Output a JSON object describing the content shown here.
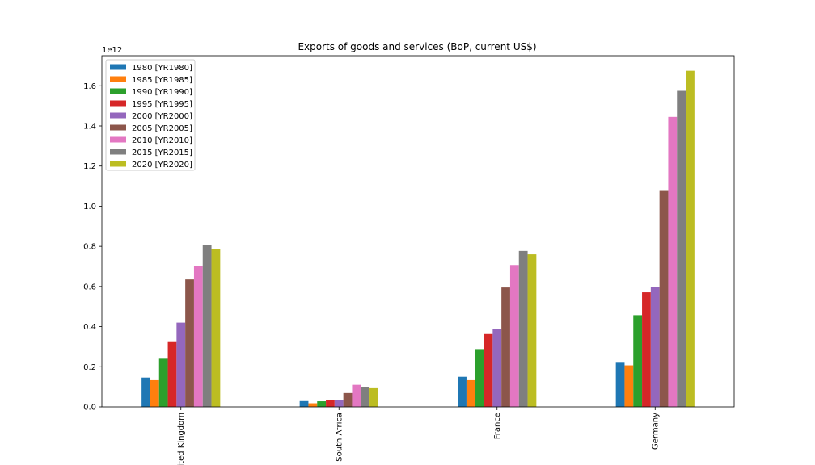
{
  "chart_data": {
    "type": "bar",
    "title": "Exports of goods and services (BoP, current US$)",
    "xlabel": "",
    "ylabel": "",
    "y_offset_label": "1e12",
    "ylim": [
      0,
      1750000000000.0
    ],
    "yticks": [
      0,
      200000000000.0,
      400000000000.0,
      600000000000.0,
      800000000000.0,
      1000000000000.0,
      1200000000000.0,
      1400000000000.0,
      1600000000000.0
    ],
    "ytick_labels": [
      "0.0",
      "0.2",
      "0.4",
      "0.6",
      "0.8",
      "1.0",
      "1.2",
      "1.4",
      "1.6"
    ],
    "categories": [
      "United Kingdom",
      "South Africa",
      "France",
      "Germany"
    ],
    "legend_position": "upper-left",
    "grid": false,
    "series": [
      {
        "name": "1980 [YR1980]",
        "color": "#1f77b4",
        "values": [
          146000000000.0,
          29000000000.0,
          150000000000.0,
          220000000000.0
        ]
      },
      {
        "name": "1985 [YR1985]",
        "color": "#ff7f0e",
        "values": [
          133000000000.0,
          18000000000.0,
          133000000000.0,
          207000000000.0
        ]
      },
      {
        "name": "1990 [YR1990]",
        "color": "#2ca02c",
        "values": [
          240000000000.0,
          28000000000.0,
          288000000000.0,
          457000000000.0
        ]
      },
      {
        "name": "1995 [YR1995]",
        "color": "#d62728",
        "values": [
          323000000000.0,
          36000000000.0,
          363000000000.0,
          571000000000.0
        ]
      },
      {
        "name": "2000 [YR2000]",
        "color": "#9467bd",
        "values": [
          420000000000.0,
          36000000000.0,
          388000000000.0,
          597000000000.0
        ]
      },
      {
        "name": "2005 [YR2005]",
        "color": "#8c564b",
        "values": [
          635000000000.0,
          69000000000.0,
          595000000000.0,
          1080000000000.0
        ]
      },
      {
        "name": "2010 [YR2010]",
        "color": "#e377c2",
        "values": [
          702000000000.0,
          110000000000.0,
          707000000000.0,
          1445000000000.0
        ]
      },
      {
        "name": "2015 [YR2015]",
        "color": "#7f7f7f",
        "values": [
          805000000000.0,
          98000000000.0,
          777000000000.0,
          1575000000000.0
        ]
      },
      {
        "name": "2020 [YR2020]",
        "color": "#bcbd22",
        "values": [
          785000000000.0,
          93000000000.0,
          760000000000.0,
          1675000000000.0
        ]
      }
    ]
  }
}
